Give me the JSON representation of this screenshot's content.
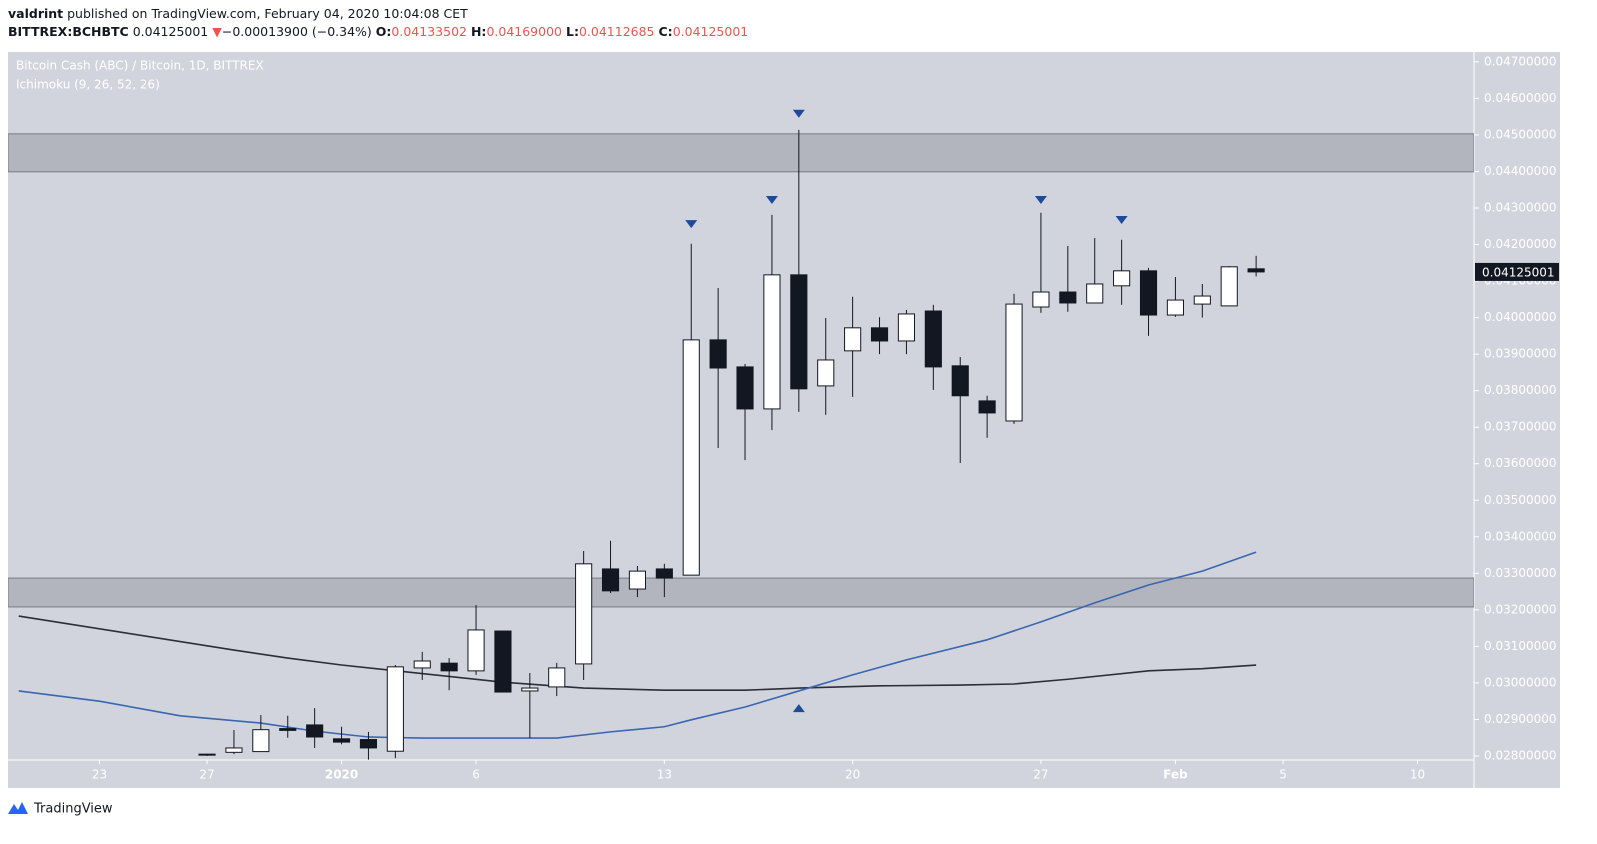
{
  "header": {
    "author": "valdrint",
    "published": "published on TradingView.com, February 04, 2020 10:04:08 CET",
    "symbol": "BITTREX:BCHBTC",
    "last": "0.04125001",
    "arrow": "▼",
    "change": "−0.00013900 (−0.34%)",
    "o_label": "O:",
    "open": "0.04133502",
    "h_label": "H:",
    "high": "0.04169000",
    "l_label": "L:",
    "low": "0.04112685",
    "c_label": "C:",
    "close": "0.04125001"
  },
  "chart_data": {
    "type": "candlestick",
    "title": "Bitcoin Cash (ABC) / Bitcoin, 1D, BITTREX",
    "subtitle": "Ichimoku (9, 26, 52, 26)",
    "xlim": [
      -12.4,
      42.1
    ],
    "ylim": [
      0.02789,
      0.04727
    ],
    "grid": false,
    "xticks": [
      {
        "value": -9,
        "label": "23"
      },
      {
        "value": -5,
        "label": "27"
      },
      {
        "value": 0,
        "label": "2020"
      },
      {
        "value": 5,
        "label": "6"
      },
      {
        "value": 12,
        "label": "13"
      },
      {
        "value": 19,
        "label": "20"
      },
      {
        "value": 26,
        "label": "27"
      },
      {
        "value": 31,
        "label": "Feb"
      },
      {
        "value": 35,
        "label": "5"
      },
      {
        "value": 40,
        "label": "10"
      }
    ],
    "yticks": [
      {
        "value": 0.028,
        "label": "0.02800000"
      },
      {
        "value": 0.029,
        "label": "0.02900000"
      },
      {
        "value": 0.03,
        "label": "0.03000000"
      },
      {
        "value": 0.031,
        "label": "0.03100000"
      },
      {
        "value": 0.032,
        "label": "0.03200000"
      },
      {
        "value": 0.033,
        "label": "0.03300000"
      },
      {
        "value": 0.034,
        "label": "0.03400000"
      },
      {
        "value": 0.035,
        "label": "0.03500000"
      },
      {
        "value": 0.036,
        "label": "0.03600000"
      },
      {
        "value": 0.037,
        "label": "0.03700000"
      },
      {
        "value": 0.038,
        "label": "0.03800000"
      },
      {
        "value": 0.039,
        "label": "0.03900000"
      },
      {
        "value": 0.04,
        "label": "0.04000000"
      },
      {
        "value": 0.041,
        "label": "0.04100000"
      },
      {
        "value": 0.042,
        "label": "0.04200000"
      },
      {
        "value": 0.043,
        "label": "0.04300000"
      },
      {
        "value": 0.044,
        "label": "0.04400000"
      },
      {
        "value": 0.045,
        "label": "0.04500000"
      },
      {
        "value": 0.046,
        "label": "0.04600000"
      },
      {
        "value": 0.047,
        "label": "0.04700000"
      }
    ],
    "candles": {
      "up_color": "#ffffff",
      "down_color": "#131722",
      "x": [
        -5,
        -4,
        -3,
        -2,
        -1,
        0,
        1,
        2,
        3,
        4,
        5,
        6,
        7,
        8,
        9,
        10,
        11,
        12,
        13,
        14,
        15,
        16,
        17,
        18,
        19,
        20,
        21,
        22,
        23,
        24,
        25,
        26,
        27,
        28,
        29,
        30,
        31,
        32,
        33,
        34
      ],
      "open": [
        0.02803,
        0.0281,
        0.02812,
        0.02875,
        0.02885,
        0.02847,
        0.02845,
        0.02813,
        0.03041,
        0.03054,
        0.03033,
        0.03142,
        0.02978,
        0.02989,
        0.03052,
        0.03312,
        0.03257,
        0.03312,
        0.03295,
        0.03939,
        0.03865,
        0.0375,
        0.04117,
        0.03813,
        0.03909,
        0.03972,
        0.03936,
        0.04018,
        0.03868,
        0.03772,
        0.03717,
        0.04029,
        0.0407,
        0.0404,
        0.04087,
        0.04128,
        0.04007,
        0.04037,
        0.04032,
        0.04133502
      ],
      "high": [
        0.02806,
        0.02871,
        0.02912,
        0.0291,
        0.02931,
        0.0288,
        0.02866,
        0.03049,
        0.03085,
        0.03068,
        0.03213,
        0.03142,
        0.03027,
        0.03055,
        0.03361,
        0.03389,
        0.0332,
        0.03326,
        0.04202,
        0.04081,
        0.03873,
        0.04281,
        0.04514,
        0.03999,
        0.04057,
        0.04001,
        0.04021,
        0.04035,
        0.03892,
        0.03786,
        0.04065,
        0.04287,
        0.04196,
        0.04218,
        0.04213,
        0.04136,
        0.04111,
        0.04092,
        0.04141,
        0.04169
      ],
      "low": [
        0.028,
        0.02805,
        0.02811,
        0.0285,
        0.02822,
        0.02832,
        0.0279,
        0.02794,
        0.03008,
        0.0298,
        0.03022,
        0.02975,
        0.02849,
        0.02964,
        0.03008,
        0.03246,
        0.03235,
        0.03235,
        0.03295,
        0.03643,
        0.0361,
        0.03692,
        0.03742,
        0.03734,
        0.03783,
        0.039,
        0.039,
        0.03802,
        0.03602,
        0.03671,
        0.03709,
        0.04013,
        0.04016,
        0.0404,
        0.04035,
        0.0395,
        0.04002,
        0.04,
        0.04032,
        0.04112685
      ],
      "close": [
        0.02805,
        0.02822,
        0.02872,
        0.0287,
        0.02852,
        0.02838,
        0.02822,
        0.03044,
        0.0306,
        0.03033,
        0.03145,
        0.02975,
        0.02986,
        0.03041,
        0.03326,
        0.03252,
        0.03306,
        0.03287,
        0.03939,
        0.03862,
        0.0375,
        0.04117,
        0.03805,
        0.03884,
        0.03972,
        0.03936,
        0.0401,
        0.03865,
        0.03786,
        0.03739,
        0.04037,
        0.0407,
        0.0404,
        0.04092,
        0.04128,
        0.04007,
        0.04048,
        0.04059,
        0.04139,
        0.04125001
      ]
    },
    "lines": [
      {
        "color": "#2a2e39",
        "x": [
          -12,
          -4,
          -2,
          0,
          6,
          9,
          12,
          15,
          17,
          20,
          23,
          25,
          27,
          30,
          32,
          34
        ],
        "values": [
          0.03183,
          0.0309,
          0.03068,
          0.03049,
          0.03002,
          0.02986,
          0.0298,
          0.0298,
          0.02986,
          0.02992,
          0.02994,
          0.02997,
          0.0301,
          0.03033,
          0.03039,
          0.03049
        ]
      },
      {
        "color": "#3a66b0",
        "x": [
          -12,
          -9,
          -6,
          -3,
          -1,
          1,
          3,
          8,
          10,
          12,
          13,
          15,
          17,
          19,
          21,
          24,
          26,
          28,
          30,
          32,
          34
        ],
        "values": [
          0.02978,
          0.0295,
          0.0291,
          0.0289,
          0.02868,
          0.02852,
          0.02849,
          0.02849,
          0.02866,
          0.0288,
          0.02899,
          0.02934,
          0.02978,
          0.03022,
          0.03063,
          0.03118,
          0.03167,
          0.03219,
          0.03268,
          0.03306,
          0.03358
        ]
      }
    ],
    "zones": [
      {
        "from": 0.04399,
        "to": 0.04503
      },
      {
        "from": 0.03208,
        "to": 0.03287
      }
    ],
    "zone_color": "#b2b5be",
    "markers": {
      "color": "#1e4a9c",
      "x": [
        13,
        16,
        17,
        26,
        29,
        17
      ],
      "values": [
        0.04256,
        0.04322,
        0.04558,
        0.04322,
        0.04267,
        0.02931
      ],
      "direction": [
        "down",
        "down",
        "down",
        "down",
        "down",
        "up"
      ]
    }
  },
  "footer": {
    "brand": "TradingView"
  }
}
